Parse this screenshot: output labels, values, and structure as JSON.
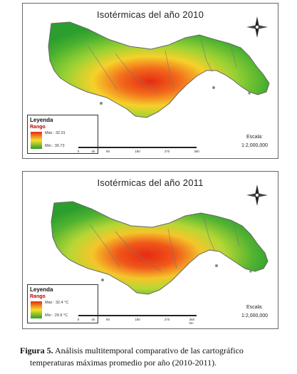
{
  "maps": [
    {
      "title": "Isotérmicas del año 2010",
      "legend": {
        "title": "Leyenda",
        "subtitle": "Rango",
        "max_label": "Máx : 32.31",
        "min_label": "Mín : 30.73"
      },
      "scale": {
        "label": "Escala:",
        "value": "1:2,000,000"
      },
      "scalebar_ticks": [
        "0",
        "45",
        "90",
        "180",
        "270",
        "360"
      ]
    },
    {
      "title": "Isotérmicas del año 2011",
      "legend": {
        "title": "Leyenda",
        "subtitle": "Rango",
        "max_label": "Máx : 32.4 °C",
        "min_label": "Mín : 29.9 °C"
      },
      "scale": {
        "label": "Escala:",
        "value": "1:2,000,000"
      },
      "scalebar_ticks": [
        "0",
        "45",
        "90",
        "180",
        "270",
        "360 km"
      ]
    }
  ],
  "caption": {
    "label": "Figura 5.",
    "line1": " Análisis multitemporal comparativo de las cartográfico",
    "line2": "temperaturas máximas promedio por año (2010-2011)."
  },
  "colors": {
    "hot": "#e52b12",
    "mid": "#f6e02a",
    "cool": "#2b9e2e"
  }
}
